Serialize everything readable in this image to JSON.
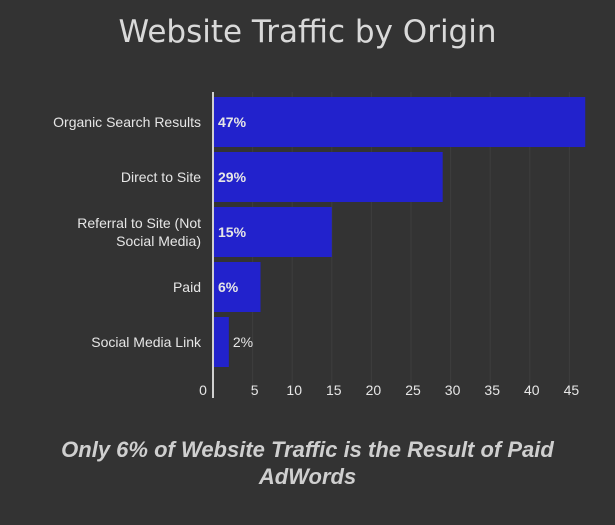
{
  "chart_data": {
    "type": "bar",
    "orientation": "horizontal",
    "title": "Website Traffic by Origin",
    "categories": [
      [
        "Organic Search Results"
      ],
      [
        "Direct to Site"
      ],
      [
        "Referral to Site (Not",
        "Social Media)"
      ],
      [
        "Paid"
      ],
      [
        "Social Media Link"
      ]
    ],
    "values": [
      47,
      29,
      15,
      6,
      2
    ],
    "data_labels": [
      "47%",
      "29%",
      "15%",
      "6%",
      "2%"
    ],
    "xlim": [
      0,
      48
    ],
    "xticks": [
      0,
      5,
      10,
      15,
      20,
      25,
      30,
      35,
      40,
      45
    ],
    "grid": true,
    "legend": "none",
    "caption": "Only 6% of Website Traffic is the Result of Paid AdWords",
    "colors": {
      "background": "#333333",
      "bar": "#2222cc",
      "grid": "#3e3e3e",
      "axis": "#d0d0d0",
      "text": "#e6e6e6"
    }
  }
}
